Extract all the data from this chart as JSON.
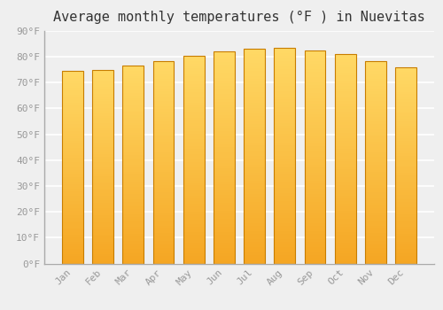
{
  "title": "Average monthly temperatures (°F ) in Nuevitas",
  "months": [
    "Jan",
    "Feb",
    "Mar",
    "Apr",
    "May",
    "Jun",
    "Jul",
    "Aug",
    "Sep",
    "Oct",
    "Nov",
    "Dec"
  ],
  "values": [
    74.5,
    75.0,
    76.5,
    78.5,
    80.5,
    82.0,
    83.0,
    83.5,
    82.5,
    81.0,
    78.5,
    76.0
  ],
  "bar_color_bottom": "#F5A623",
  "bar_color_top": "#FFD966",
  "bar_edge_color": "#C87D00",
  "ylim": [
    0,
    90
  ],
  "yticks": [
    0,
    10,
    20,
    30,
    40,
    50,
    60,
    70,
    80,
    90
  ],
  "ytick_labels": [
    "0°F",
    "10°F",
    "20°F",
    "30°F",
    "40°F",
    "50°F",
    "60°F",
    "70°F",
    "80°F",
    "90°F"
  ],
  "background_color": "#EFEFEF",
  "grid_color": "#FFFFFF",
  "title_fontsize": 11,
  "tick_fontsize": 8,
  "font_family": "monospace"
}
